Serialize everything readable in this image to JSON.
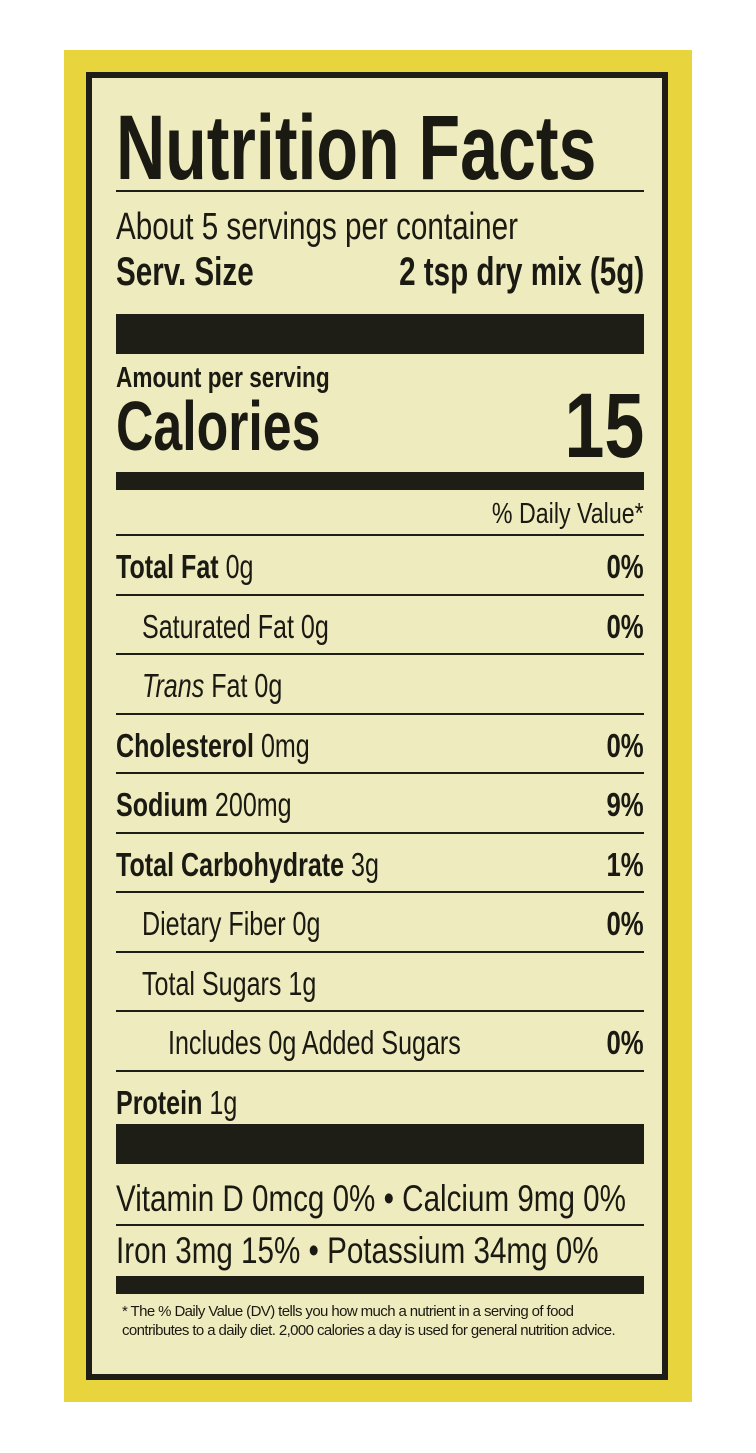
{
  "title": "Nutrition Facts",
  "servings_per_container": "About 5 servings per container",
  "serving_size": {
    "label": "Serv. Size",
    "value": "2 tsp dry mix (5g)"
  },
  "amount_per_serving": "Amount per serving",
  "calories": {
    "label": "Calories",
    "value": "15"
  },
  "daily_value_header": "% Daily Value*",
  "nutrients": [
    {
      "name": "Total Fat",
      "amount": "0g",
      "dv": "0%",
      "bold": true,
      "indent": 0
    },
    {
      "name": "Saturated Fat",
      "amount": "0g",
      "dv": "0%",
      "bold": false,
      "indent": 1
    },
    {
      "name": "Trans",
      "name_suffix": "Fat",
      "amount": "0g",
      "dv": "",
      "bold": false,
      "indent": 1
    },
    {
      "name": "Cholesterol",
      "amount": "0mg",
      "dv": "0%",
      "bold": true,
      "indent": 0
    },
    {
      "name": "Sodium",
      "amount": "200mg",
      "dv": "9%",
      "bold": true,
      "indent": 0
    },
    {
      "name": "Total Carbohydrate",
      "amount": "3g",
      "dv": "1%",
      "bold": true,
      "indent": 0
    },
    {
      "name": "Dietary Fiber",
      "amount": "0g",
      "dv": "0%",
      "bold": false,
      "indent": 1
    },
    {
      "name": "Total Sugars",
      "amount": "1g",
      "dv": "",
      "bold": false,
      "indent": 1
    },
    {
      "name": "Includes 0g Added Sugars",
      "amount": "",
      "dv": "0%",
      "bold": false,
      "indent": 2
    },
    {
      "name": "Protein",
      "amount": "1g",
      "dv": "",
      "bold": true,
      "indent": 0
    }
  ],
  "vitamins": [
    "Vitamin D 0mcg 0%  •  Calcium 9mg 0%",
    "Iron 3mg 15%  •  Potassium 34mg 0%"
  ],
  "footnote": "* The % Daily Value (DV) tells you how much a nutrient in a serving of food contributes to a daily diet. 2,000 calories a day is used for general nutrition advice.",
  "colors": {
    "package": "#e8d53e",
    "panel": "#eeecbf",
    "ink": "#1e1d16"
  }
}
